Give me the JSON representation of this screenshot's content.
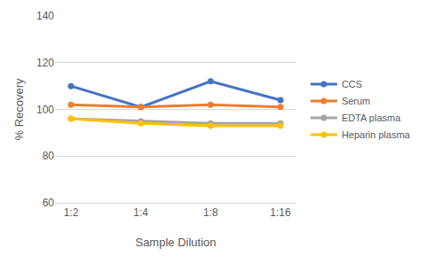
{
  "chart_data": {
    "type": "line",
    "xlabel": "Sample Dilution",
    "ylabel": "% Recovery",
    "categories": [
      "1:2",
      "1:4",
      "1:8",
      "1:16"
    ],
    "series": [
      {
        "name": "CCS",
        "color": "#4472c4",
        "values": [
          110,
          101,
          112,
          104
        ]
      },
      {
        "name": "Serum",
        "color": "#ed7d31",
        "values": [
          102,
          101,
          102,
          101
        ]
      },
      {
        "name": "EDTA plasma",
        "color": "#a5a5a5",
        "values": [
          96,
          95,
          94,
          94
        ]
      },
      {
        "name": "Heparin plasma",
        "color": "#ffc000",
        "values": [
          96,
          94,
          93,
          93
        ]
      }
    ],
    "ylim": [
      60,
      140
    ],
    "yticks": [
      60,
      80,
      100,
      120,
      140
    ],
    "grid": true,
    "legend": "right",
    "marker": "circle"
  }
}
